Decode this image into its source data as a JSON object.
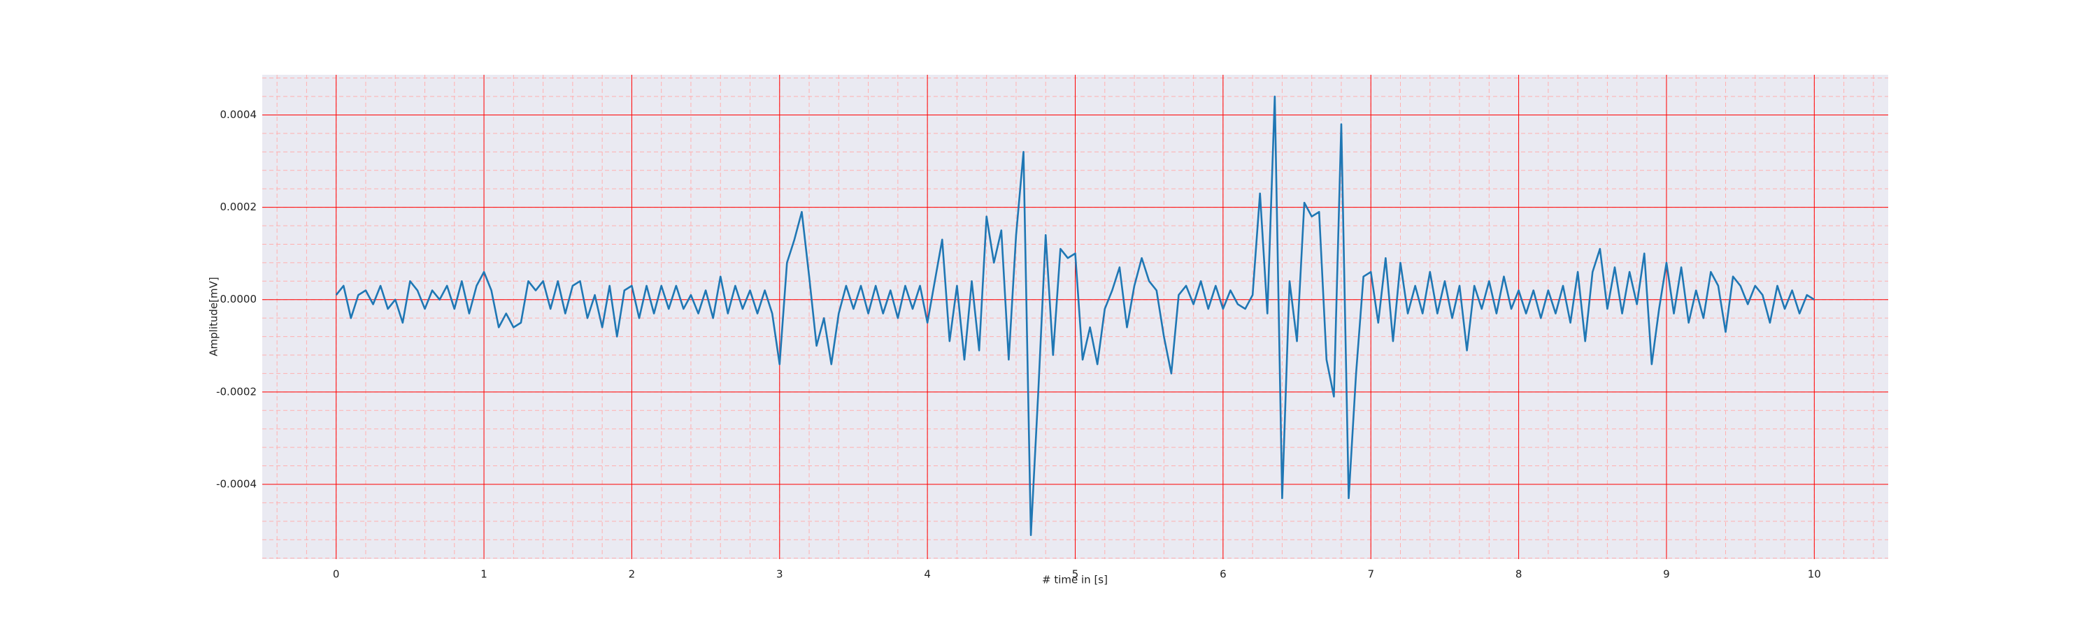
{
  "chart_data": {
    "type": "line",
    "xlabel": "# time in [s]",
    "ylabel": "Amplitude[mV]",
    "xlim": [
      -0.5,
      10.5
    ],
    "xticks": [
      0,
      1,
      2,
      3,
      4,
      5,
      6,
      7,
      8,
      9,
      10
    ],
    "ylim": [
      -0.000562,
      0.000487
    ],
    "yticks": [
      -0.0004,
      -0.0002,
      {
        "value": 0,
        "label": "0.0000"
      },
      0.0002,
      0.0004
    ],
    "grid": true,
    "minor_grid": true,
    "grid_color": "#ff0000",
    "minor_grid_color": "#ffb0b0",
    "x": [
      0,
      0.05,
      0.1,
      0.15,
      0.2,
      0.25,
      0.3,
      0.35,
      0.4,
      0.45,
      0.5,
      0.55,
      0.6,
      0.65,
      0.7,
      0.75,
      0.8,
      0.85,
      0.9,
      0.95,
      1,
      1.05,
      1.1,
      1.15,
      1.2,
      1.25,
      1.3,
      1.35,
      1.4,
      1.45,
      1.5,
      1.55,
      1.6,
      1.65,
      1.7,
      1.75,
      1.8,
      1.85,
      1.9,
      1.95,
      2,
      2.05,
      2.1,
      2.15,
      2.2,
      2.25,
      2.3,
      2.35,
      2.4,
      2.45,
      2.5,
      2.55,
      2.6,
      2.65,
      2.7,
      2.75,
      2.8,
      2.85,
      2.9,
      2.95,
      3,
      3.05,
      3.1,
      3.15,
      3.2,
      3.25,
      3.3,
      3.35,
      3.4,
      3.45,
      3.5,
      3.55,
      3.6,
      3.65,
      3.7,
      3.75,
      3.8,
      3.85,
      3.9,
      3.95,
      4,
      4.05,
      4.1,
      4.15,
      4.2,
      4.25,
      4.3,
      4.35,
      4.4,
      4.45,
      4.5,
      4.55,
      4.6,
      4.65,
      4.7,
      4.75,
      4.8,
      4.85,
      4.9,
      4.95,
      5,
      5.05,
      5.1,
      5.15,
      5.2,
      5.25,
      5.3,
      5.35,
      5.4,
      5.45,
      5.5,
      5.55,
      5.6,
      5.65,
      5.7,
      5.75,
      5.8,
      5.85,
      5.9,
      5.95,
      6,
      6.05,
      6.1,
      6.15,
      6.2,
      6.25,
      6.3,
      6.35,
      6.4,
      6.45,
      6.5,
      6.55,
      6.6,
      6.65,
      6.7,
      6.75,
      6.8,
      6.85,
      6.9,
      6.95,
      7,
      7.05,
      7.1,
      7.15,
      7.2,
      7.25,
      7.3,
      7.35,
      7.4,
      7.45,
      7.5,
      7.55,
      7.6,
      7.65,
      7.7,
      7.75,
      7.8,
      7.85,
      7.9,
      7.95,
      8,
      8.05,
      8.1,
      8.15,
      8.2,
      8.25,
      8.3,
      8.35,
      8.4,
      8.45,
      8.5,
      8.55,
      8.6,
      8.65,
      8.7,
      8.75,
      8.8,
      8.85,
      8.9,
      8.95,
      9,
      9.05,
      9.1,
      9.15,
      9.2,
      9.25,
      9.3,
      9.35,
      9.4,
      9.45,
      9.5,
      9.55,
      9.6,
      9.65,
      9.7,
      9.75,
      9.8,
      9.85,
      9.9,
      9.95,
      10
    ],
    "series": [
      {
        "color": "#1f77b4",
        "values": [
          1e-05,
          3e-05,
          -4e-05,
          1e-05,
          2e-05,
          -1e-05,
          3e-05,
          -2e-05,
          0,
          -5e-05,
          4e-05,
          2e-05,
          -2e-05,
          2e-05,
          0,
          3e-05,
          -2e-05,
          4e-05,
          -3e-05,
          3e-05,
          6e-05,
          2e-05,
          -6e-05,
          -3e-05,
          -6e-05,
          -5e-05,
          4e-05,
          2e-05,
          4e-05,
          -2e-05,
          4e-05,
          -3e-05,
          3e-05,
          4e-05,
          -4e-05,
          1e-05,
          -6e-05,
          3e-05,
          -8e-05,
          2e-05,
          3e-05,
          -4e-05,
          3e-05,
          -3e-05,
          3e-05,
          -2e-05,
          3e-05,
          -2e-05,
          1e-05,
          -3e-05,
          2e-05,
          -4e-05,
          5e-05,
          -3e-05,
          3e-05,
          -2e-05,
          2e-05,
          -3e-05,
          2e-05,
          -3e-05,
          -0.00014,
          8e-05,
          0.00013,
          0.00019,
          5e-05,
          -0.0001,
          -4e-05,
          -0.00014,
          -3e-05,
          3e-05,
          -2e-05,
          3e-05,
          -3e-05,
          3e-05,
          -3e-05,
          2e-05,
          -4e-05,
          3e-05,
          -2e-05,
          3e-05,
          -5e-05,
          4e-05,
          0.00013,
          -9e-05,
          3e-05,
          -0.00013,
          4e-05,
          -0.00011,
          0.00018,
          8e-05,
          0.00015,
          -0.00013,
          0.00014,
          0.00032,
          -0.00051,
          -0.0002,
          0.00014,
          -0.00012,
          0.00011,
          9e-05,
          0.0001,
          -0.00013,
          -6e-05,
          -0.00014,
          -2e-05,
          2e-05,
          7e-05,
          -6e-05,
          3e-05,
          9e-05,
          4e-05,
          2e-05,
          -8e-05,
          -0.00016,
          1e-05,
          3e-05,
          -1e-05,
          4e-05,
          -2e-05,
          3e-05,
          -2e-05,
          2e-05,
          -1e-05,
          -2e-05,
          1e-05,
          0.00023,
          -3e-05,
          0.00044,
          -0.00043,
          4e-05,
          -9e-05,
          0.00021,
          0.00018,
          0.00019,
          -0.00013,
          -0.00021,
          0.00038,
          -0.00043,
          -0.00016,
          5e-05,
          6e-05,
          -5e-05,
          9e-05,
          -9e-05,
          8e-05,
          -3e-05,
          3e-05,
          -3e-05,
          6e-05,
          -3e-05,
          4e-05,
          -4e-05,
          3e-05,
          -0.00011,
          3e-05,
          -2e-05,
          4e-05,
          -3e-05,
          5e-05,
          -2e-05,
          2e-05,
          -3e-05,
          2e-05,
          -4e-05,
          2e-05,
          -3e-05,
          3e-05,
          -5e-05,
          6e-05,
          -9e-05,
          6e-05,
          0.00011,
          -2e-05,
          7e-05,
          -3e-05,
          6e-05,
          -1e-05,
          0.0001,
          -0.00014,
          -2e-05,
          8e-05,
          -3e-05,
          7e-05,
          -5e-05,
          2e-05,
          -4e-05,
          6e-05,
          3e-05,
          -7e-05,
          5e-05,
          3e-05,
          -1e-05,
          3e-05,
          1e-05,
          -5e-05,
          3e-05,
          -2e-05,
          2e-05,
          -3e-05,
          1e-05,
          0
        ]
      }
    ]
  }
}
